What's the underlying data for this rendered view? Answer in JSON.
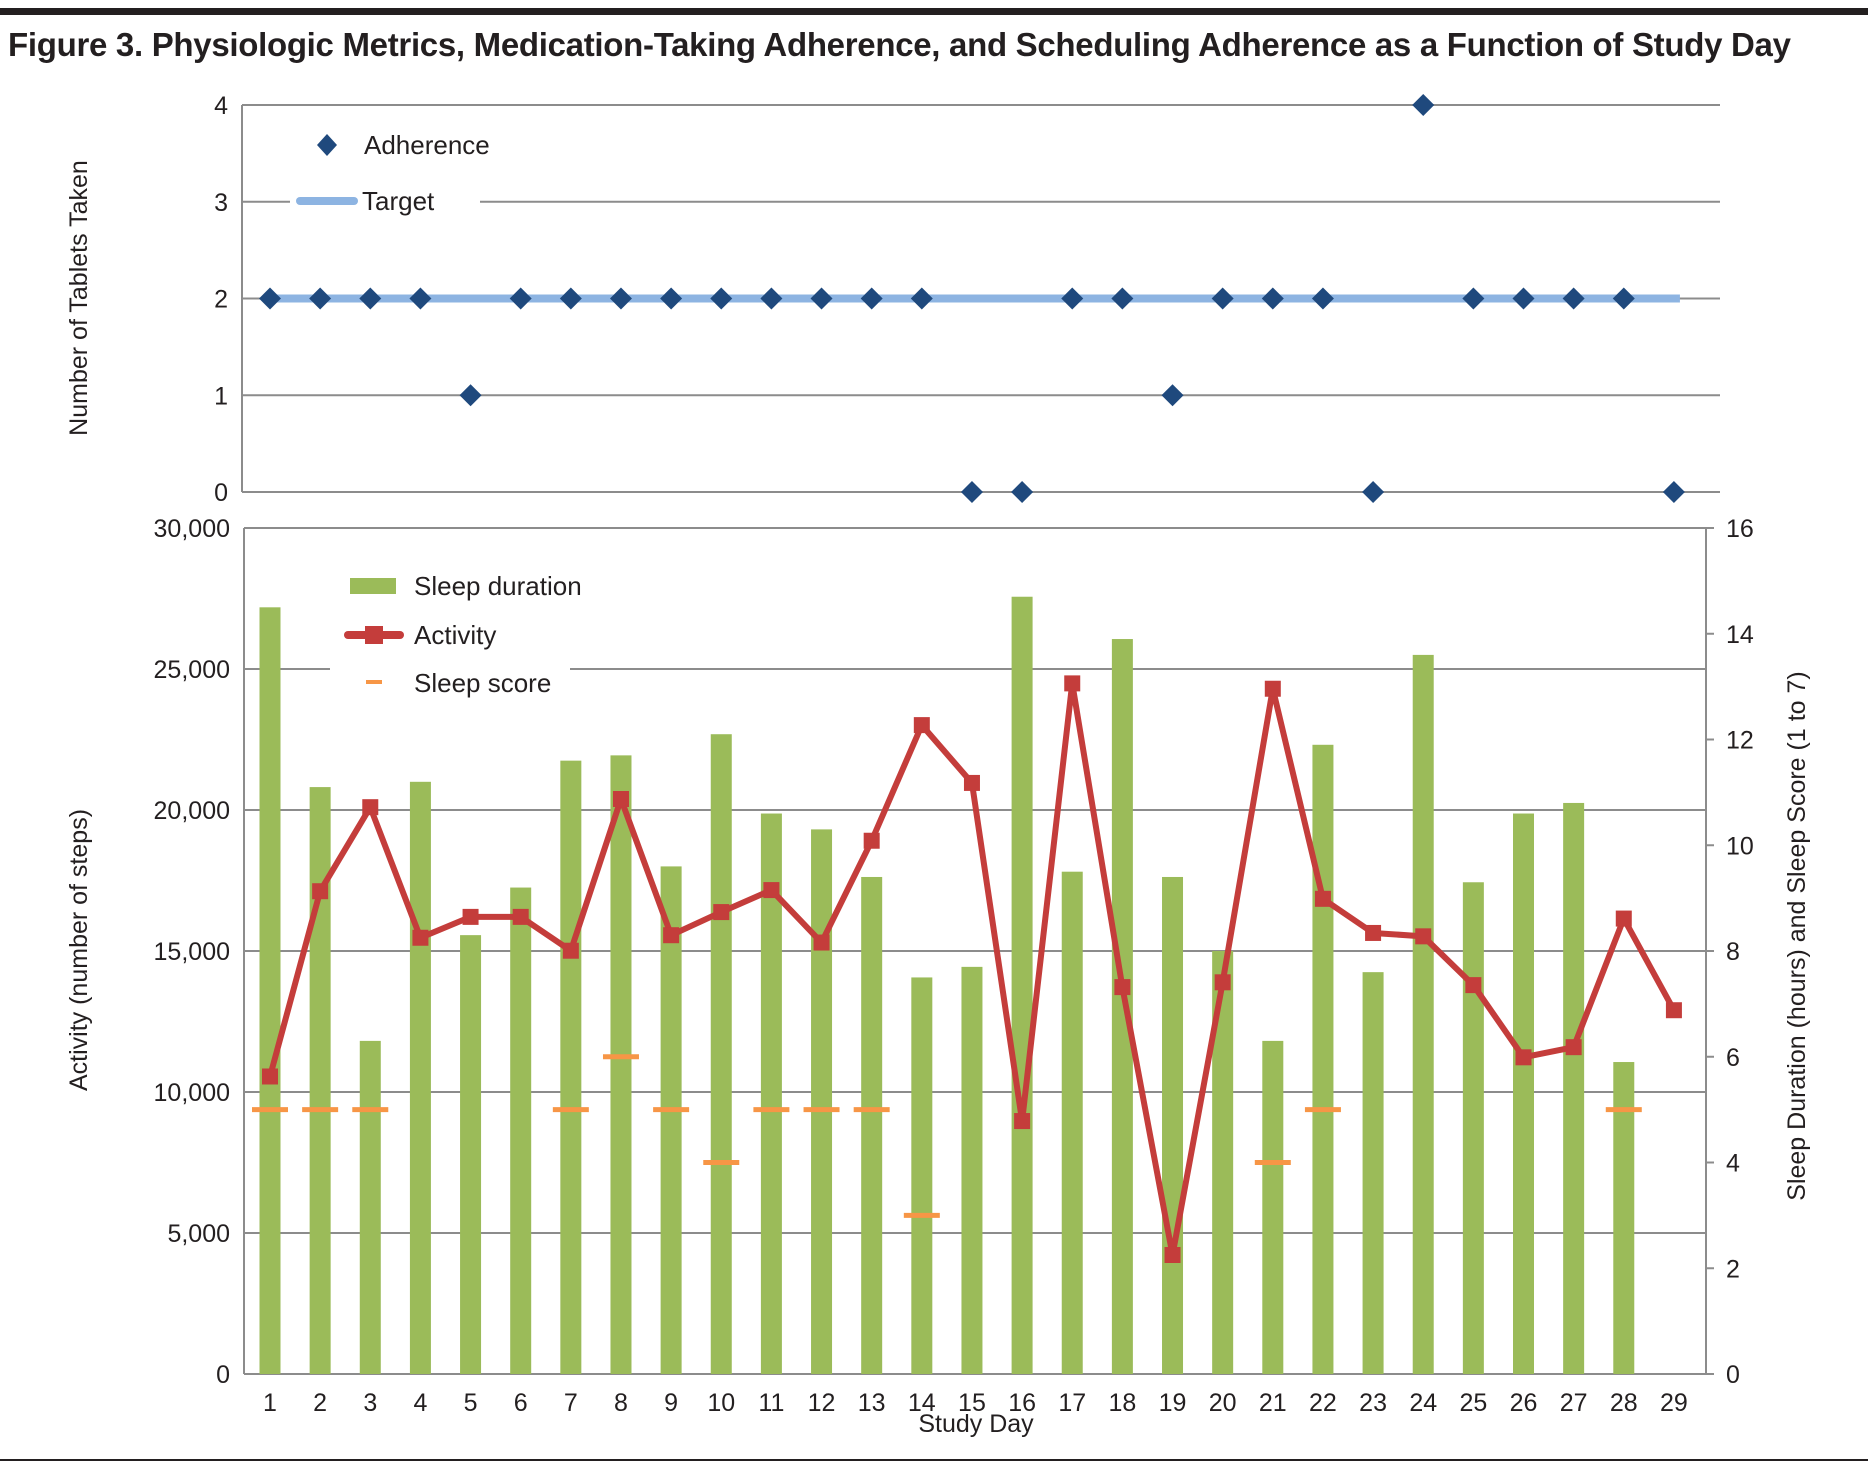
{
  "title": "Figure 3. Physiologic Metrics, Medication-Taking Adherence, and Scheduling Adherence as a Function of Study Day",
  "colors": {
    "adherence": "#1f497d",
    "target": "#8db4e2",
    "sleep_duration": "#9bbb59",
    "activity": "#c43d3b",
    "sleep_score": "#f79646"
  },
  "chart_data": [
    {
      "type": "scatter",
      "ylabel": "Number of Tablets Taken",
      "ylim": [
        0,
        4
      ],
      "yticks": [
        "0",
        "1",
        "2",
        "3",
        "4"
      ],
      "grid": true,
      "legend": "top-left",
      "x": [
        1,
        2,
        3,
        4,
        5,
        6,
        7,
        8,
        9,
        10,
        11,
        12,
        13,
        14,
        15,
        16,
        17,
        18,
        19,
        20,
        21,
        22,
        23,
        24,
        25,
        26,
        27,
        28,
        29
      ],
      "series": [
        {
          "name": "Adherence",
          "marker": "diamond",
          "values": [
            2,
            2,
            2,
            2,
            1,
            2,
            2,
            2,
            2,
            2,
            2,
            2,
            2,
            2,
            0,
            0,
            2,
            2,
            1,
            2,
            2,
            2,
            0,
            4,
            2,
            2,
            2,
            2,
            0
          ]
        },
        {
          "name": "Target",
          "type": "line",
          "values": [
            2,
            2,
            2,
            2,
            2,
            2,
            2,
            2,
            2,
            2,
            2,
            2,
            2,
            2,
            2,
            2,
            2,
            2,
            2,
            2,
            2,
            2,
            2,
            2,
            2,
            2,
            2,
            2,
            2
          ]
        }
      ]
    },
    {
      "type": "bar+line",
      "xlabel": "Study Day",
      "ylabel": "Activity (number of steps)",
      "y2label": "Sleep Duration (hours) and Sleep Score (1 to 7)",
      "ylim": [
        0,
        30000
      ],
      "y2lim": [
        0,
        16
      ],
      "yticks": [
        "0",
        "5,000",
        "10,000",
        "15,000",
        "20,000",
        "25,000",
        "30,000"
      ],
      "y2ticks": [
        "0",
        "2",
        "4",
        "6",
        "8",
        "10",
        "12",
        "14",
        "16"
      ],
      "grid": true,
      "legend": "top-left",
      "categories": [
        "1",
        "2",
        "3",
        "4",
        "5",
        "6",
        "7",
        "8",
        "9",
        "10",
        "11",
        "12",
        "13",
        "14",
        "15",
        "16",
        "17",
        "18",
        "19",
        "20",
        "21",
        "22",
        "23",
        "24",
        "25",
        "26",
        "27",
        "28",
        "29"
      ],
      "series": [
        {
          "name": "Sleep duration",
          "type": "bar",
          "axis": "right",
          "values": [
            14.5,
            11.1,
            6.3,
            11.2,
            8.3,
            9.2,
            11.6,
            11.7,
            9.6,
            12.1,
            10.6,
            10.3,
            9.4,
            7.5,
            7.7,
            14.7,
            9.5,
            13.9,
            9.4,
            8.0,
            6.3,
            11.9,
            7.6,
            13.6,
            9.3,
            10.6,
            10.8,
            5.9,
            null
          ]
        },
        {
          "name": "Activity",
          "type": "line",
          "axis": "left",
          "values": [
            10550,
            17120,
            20100,
            15470,
            16210,
            16210,
            15010,
            20390,
            15560,
            16380,
            17160,
            15300,
            18910,
            23010,
            20960,
            8970,
            24490,
            13720,
            4220,
            13890,
            24300,
            16850,
            15640,
            15520,
            13790,
            11230,
            11590,
            16150,
            12900
          ]
        },
        {
          "name": "Sleep score",
          "type": "dash",
          "axis": "right",
          "values": [
            5,
            5,
            5,
            null,
            null,
            null,
            5,
            6,
            5,
            4,
            5,
            5,
            5,
            3,
            null,
            null,
            null,
            null,
            null,
            null,
            4,
            5,
            null,
            null,
            null,
            null,
            null,
            5,
            null
          ]
        }
      ]
    }
  ]
}
